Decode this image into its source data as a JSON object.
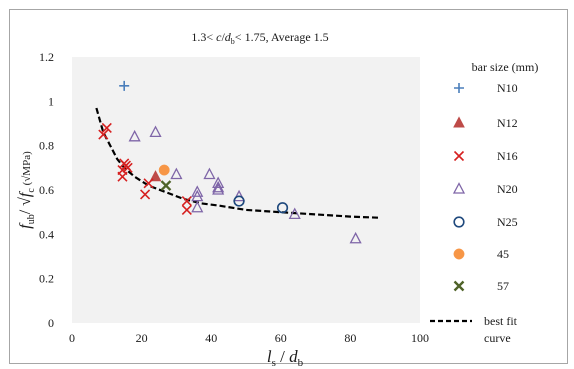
{
  "chart_data": {
    "type": "scatter",
    "title_parts": {
      "prefix": "1.3< ",
      "c": "c",
      "slash": "/",
      "d": "d",
      "b": "b",
      "suffix": "< 1.75, Average 1.5"
    },
    "xlabel_parts": {
      "l": "l",
      "s": "s",
      "slash": " / ",
      "d": "d",
      "b": "b"
    },
    "ylabel_parts": {
      "f": "f",
      "sub": "ub",
      "slash": "/ √",
      "fc": "f",
      "c": "c",
      "unit": " (√MPa)"
    },
    "xlim": [
      0,
      100
    ],
    "ylim": [
      0,
      1.2
    ],
    "x_ticks": [
      "0",
      "20",
      "40",
      "60",
      "80",
      "100"
    ],
    "y_ticks": [
      "0",
      "0.2",
      "0.4",
      "0.6",
      "0.8",
      "1",
      "1.2"
    ],
    "grid": false,
    "legend_title": "bar size (mm)",
    "legend_position": "right",
    "series": [
      {
        "name": "N10",
        "marker": "plus",
        "color": "#4a7ebb",
        "points": [
          [
            15,
            1.07
          ]
        ]
      },
      {
        "name": "N12",
        "marker": "triangle-filled",
        "color": "#be4b48",
        "points": [
          [
            24,
            0.66
          ]
        ]
      },
      {
        "name": "N16",
        "marker": "x",
        "color": "#d62020",
        "points": [
          [
            9,
            0.85
          ],
          [
            10,
            0.88
          ],
          [
            14.5,
            0.66
          ],
          [
            14.5,
            0.69
          ],
          [
            15,
            0.72
          ],
          [
            15.5,
            0.71
          ],
          [
            16,
            0.7
          ],
          [
            21,
            0.58
          ],
          [
            22,
            0.63
          ],
          [
            33,
            0.55
          ],
          [
            33,
            0.51
          ]
        ]
      },
      {
        "name": "N20",
        "marker": "triangle-open",
        "color": "#7f66a8",
        "points": [
          [
            18,
            0.84
          ],
          [
            24,
            0.86
          ],
          [
            30,
            0.67
          ],
          [
            36,
            0.59
          ],
          [
            36,
            0.57
          ],
          [
            36,
            0.52
          ],
          [
            39.5,
            0.67
          ],
          [
            42,
            0.63
          ],
          [
            42,
            0.61
          ],
          [
            42,
            0.6
          ],
          [
            48,
            0.57
          ],
          [
            64,
            0.49
          ],
          [
            81.5,
            0.38
          ]
        ]
      },
      {
        "name": "N25",
        "marker": "circle-open",
        "color": "#1f497d",
        "points": [
          [
            48,
            0.55
          ],
          [
            60.5,
            0.52
          ]
        ]
      },
      {
        "name": "45",
        "marker": "circle-filled",
        "color": "#f79646",
        "points": [
          [
            26.5,
            0.69
          ]
        ]
      },
      {
        "name": "57",
        "marker": "x-bold",
        "color": "#4f6228",
        "points": [
          [
            27,
            0.62
          ]
        ]
      }
    ],
    "fit_curve": {
      "name": "best fit\ncurve",
      "name_line1": "best fit",
      "name_line2": "curve",
      "style": "dashed",
      "color": "#000000",
      "points": [
        [
          7,
          0.97
        ],
        [
          9,
          0.86
        ],
        [
          11,
          0.8
        ],
        [
          13,
          0.74
        ],
        [
          15,
          0.7
        ],
        [
          18,
          0.66
        ],
        [
          22,
          0.62
        ],
        [
          27,
          0.59
        ],
        [
          32,
          0.56
        ],
        [
          37,
          0.54
        ],
        [
          42,
          0.53
        ],
        [
          50,
          0.51
        ],
        [
          60,
          0.5
        ],
        [
          70,
          0.49
        ],
        [
          80,
          0.48
        ],
        [
          88,
          0.475
        ]
      ]
    }
  }
}
